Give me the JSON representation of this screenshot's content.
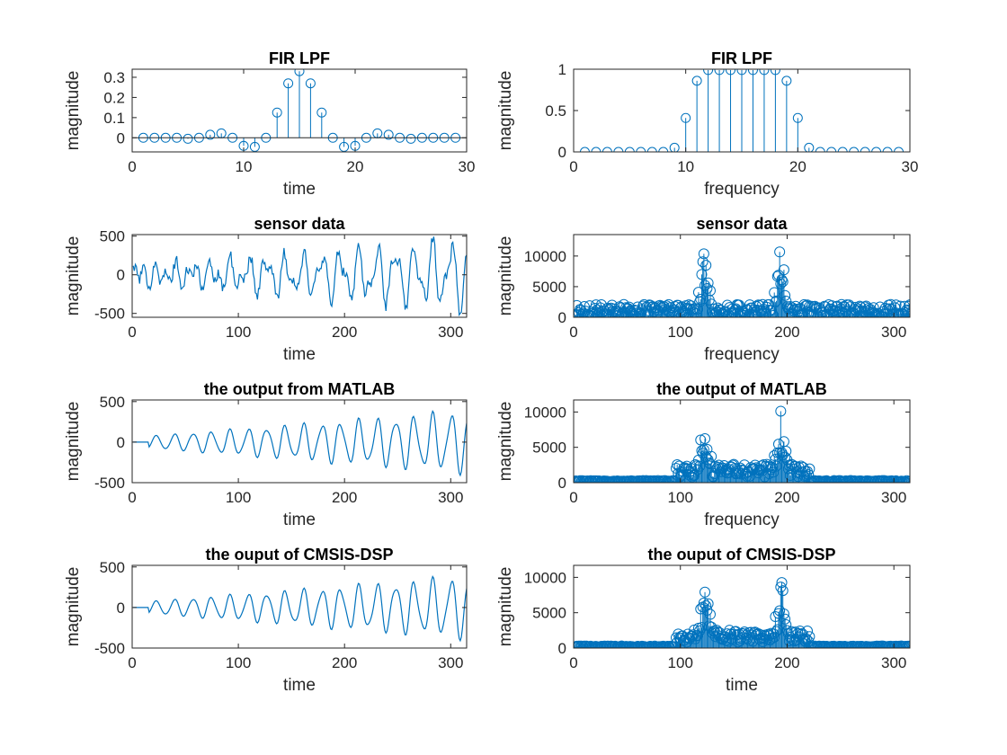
{
  "chart_data": [
    {
      "type": "stem",
      "title": "FIR LPF",
      "xlabel": "time",
      "ylabel": "magnitude",
      "xlim": [
        0,
        30
      ],
      "ylim": [
        -0.07,
        0.34
      ],
      "xticks": [
        "0",
        "10",
        "20",
        "30"
      ],
      "yticks": [
        "0",
        "0.1",
        "0.2",
        "0.3"
      ],
      "x": [
        1,
        2,
        3,
        4,
        5,
        6,
        7,
        8,
        9,
        10,
        11,
        12,
        13,
        14,
        15,
        16,
        17,
        18,
        19,
        20,
        21,
        22,
        23,
        24,
        25,
        26,
        27,
        28,
        29
      ],
      "values": [
        0.0,
        0.0,
        0.0,
        0.0,
        -0.005,
        0.0,
        0.015,
        0.022,
        0.0,
        -0.04,
        -0.045,
        0.0,
        0.125,
        0.27,
        0.33,
        0.27,
        0.125,
        0.0,
        -0.045,
        -0.04,
        0.0,
        0.022,
        0.015,
        0.0,
        -0.005,
        0.0,
        0.0,
        0.0,
        0.0
      ]
    },
    {
      "type": "stem",
      "title": "FIR LPF",
      "xlabel": "frequency",
      "ylabel": "magnitude",
      "xlim": [
        0,
        30
      ],
      "ylim": [
        0,
        1
      ],
      "xticks": [
        "0",
        "10",
        "20",
        "30"
      ],
      "yticks": [
        "0",
        "0.5",
        "1"
      ],
      "x": [
        1,
        2,
        3,
        4,
        5,
        6,
        7,
        8,
        9,
        10,
        11,
        12,
        13,
        14,
        15,
        16,
        17,
        18,
        19,
        20,
        21,
        22,
        23,
        24,
        25,
        26,
        27,
        28,
        29
      ],
      "values": [
        0.0,
        0.0,
        0.0,
        0.0,
        0.0,
        0.0,
        0.0,
        0.0,
        0.05,
        0.41,
        0.86,
        0.99,
        0.99,
        0.99,
        0.99,
        0.99,
        0.99,
        0.99,
        0.86,
        0.41,
        0.05,
        0.0,
        0.0,
        0.0,
        0.0,
        0.0,
        0.0,
        0.0,
        0.0
      ]
    },
    {
      "type": "line",
      "title": "sensor data",
      "xlabel": "time",
      "ylabel": "magnitude",
      "xlim": [
        0,
        315
      ],
      "ylim": [
        -550,
        520
      ],
      "xticks": [
        "0",
        "100",
        "200",
        "300"
      ],
      "yticks": [
        "-500",
        "0",
        "500"
      ],
      "generator": {
        "n": 315,
        "components": [
          {
            "freq": 0.362,
            "amp_start": 50,
            "amp_end": 360
          },
          {
            "freq": 0.624,
            "amp_start": 100,
            "amp_end": 170
          }
        ],
        "noise_amp": 70
      }
    },
    {
      "type": "stem",
      "title": "sensor data",
      "xlabel": "frequency",
      "ylabel": "magnitude",
      "xlim": [
        0,
        315
      ],
      "ylim": [
        0,
        13500
      ],
      "xticks": [
        "0",
        "100",
        "200",
        "300"
      ],
      "yticks": [
        "0",
        "5000",
        "10000"
      ],
      "generator": {
        "n": 315,
        "base": 1500,
        "peaks": [
          {
            "center": 122,
            "height": 12000,
            "width": 6
          },
          {
            "center": 193,
            "height": 12000,
            "width": 6
          }
        ]
      }
    },
    {
      "type": "line",
      "title": "the output from MATLAB",
      "xlabel": "time",
      "ylabel": "magnitude",
      "xlim": [
        0,
        315
      ],
      "ylim": [
        -500,
        520
      ],
      "xticks": [
        "0",
        "100",
        "200",
        "300"
      ],
      "yticks": [
        "-500",
        "0",
        "500"
      ],
      "generator": {
        "n": 315,
        "components": [
          {
            "freq": 0.362,
            "amp_start": 60,
            "amp_end": 340
          },
          {
            "freq": 0.624,
            "amp_start": 0,
            "amp_end": 80
          }
        ],
        "noise_amp": 0,
        "ramp_start": 15
      }
    },
    {
      "type": "stem",
      "title": "the output of MATLAB",
      "xlabel": "frequency",
      "ylabel": "magnitude",
      "xlim": [
        0,
        315
      ],
      "ylim": [
        0,
        11700
      ],
      "xticks": [
        "0",
        "100",
        "200",
        "300"
      ],
      "yticks": [
        "0",
        "5000",
        "10000"
      ],
      "generator": {
        "n": 315,
        "base": 200,
        "band": [
          95,
          220
        ],
        "band_level": 2000,
        "peaks": [
          {
            "center": 122,
            "height": 10500,
            "width": 6
          },
          {
            "center": 193,
            "height": 10500,
            "width": 6
          }
        ]
      }
    },
    {
      "type": "line",
      "title": "the ouput of CMSIS-DSP",
      "xlabel": "time",
      "ylabel": "magnitude",
      "xlim": [
        0,
        315
      ],
      "ylim": [
        -500,
        520
      ],
      "xticks": [
        "0",
        "100",
        "200",
        "300"
      ],
      "yticks": [
        "-500",
        "0",
        "500"
      ],
      "generator": {
        "n": 315,
        "components": [
          {
            "freq": 0.362,
            "amp_start": 60,
            "amp_end": 340
          },
          {
            "freq": 0.624,
            "amp_start": 0,
            "amp_end": 80
          }
        ],
        "noise_amp": 0,
        "ramp_start": 15
      }
    },
    {
      "type": "stem",
      "title": "the ouput of CMSIS-DSP",
      "xlabel": "time",
      "ylabel": "magnitude",
      "xlim": [
        0,
        315
      ],
      "ylim": [
        0,
        11700
      ],
      "xticks": [
        "0",
        "100",
        "200",
        "300"
      ],
      "yticks": [
        "0",
        "5000",
        "10000"
      ],
      "generator": {
        "n": 315,
        "base": 200,
        "band": [
          95,
          220
        ],
        "band_level": 2000,
        "peaks": [
          {
            "center": 122,
            "height": 10500,
            "width": 6
          },
          {
            "center": 193,
            "height": 10500,
            "width": 6
          }
        ]
      }
    }
  ],
  "colors": {
    "series": "#0072BD",
    "axes": "#262626",
    "background": "#ffffff"
  }
}
